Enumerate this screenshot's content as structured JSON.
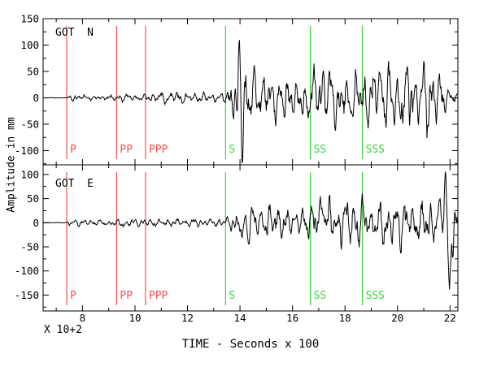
{
  "chart_data": {
    "type": "line",
    "title": "",
    "xlabel": "TIME - Seconds x 100",
    "ylabel": "Amplitude in mm",
    "x_unit_note": "X 10+2",
    "xlim": [
      6.5,
      22.3
    ],
    "x_major_ticks": [
      8,
      10,
      12,
      14,
      16,
      18,
      20,
      22
    ],
    "x_minor_tick_step": 1,
    "grid": false,
    "legend": "none",
    "colors": {
      "trace": "#000000",
      "axis": "#000000",
      "p_marker": "#f05050",
      "s_marker": "#3cd43c",
      "background": "#ffffff"
    },
    "panels": [
      {
        "component": "N",
        "station_label": "GOT  N",
        "ylim": [
          -127,
          150
        ],
        "y_major_ticks": [
          150,
          100,
          50,
          0,
          -50,
          -100
        ],
        "y_minor_ticks": [
          125,
          75,
          25,
          -25,
          -75,
          -125
        ],
        "phase_markers": [
          {
            "label": "P",
            "x": 7.4,
            "type": "p"
          },
          {
            "label": "PP",
            "x": 9.3,
            "type": "p"
          },
          {
            "label": "PPP",
            "x": 10.4,
            "type": "p"
          },
          {
            "label": "S",
            "x": 13.45,
            "type": "s"
          },
          {
            "label": "SS",
            "x": 16.68,
            "type": "s"
          },
          {
            "label": "SSS",
            "x": 18.66,
            "type": "s"
          }
        ],
        "envelope": [
          [
            6.5,
            0.4
          ],
          [
            7.38,
            0.4
          ],
          [
            7.5,
            8
          ],
          [
            8.3,
            7
          ],
          [
            9.25,
            8
          ],
          [
            9.5,
            9
          ],
          [
            10.3,
            8
          ],
          [
            10.6,
            9
          ],
          [
            11.2,
            12
          ],
          [
            12.3,
            11
          ],
          [
            13.3,
            10
          ],
          [
            13.5,
            25
          ],
          [
            13.75,
            55
          ],
          [
            14.25,
            70
          ],
          [
            14.6,
            62
          ],
          [
            15.2,
            58
          ],
          [
            15.8,
            48
          ],
          [
            16.3,
            38
          ],
          [
            16.7,
            55
          ],
          [
            17.1,
            68
          ],
          [
            17.6,
            64
          ],
          [
            18.1,
            58
          ],
          [
            18.65,
            62
          ],
          [
            19.2,
            70
          ],
          [
            19.9,
            72
          ],
          [
            20.5,
            82
          ],
          [
            21.0,
            88
          ],
          [
            21.4,
            75
          ],
          [
            21.75,
            45
          ],
          [
            22.0,
            20
          ],
          [
            22.3,
            12
          ]
        ],
        "spikes": [
          {
            "x": 13.88,
            "amp": -45,
            "w": 0.04
          },
          {
            "x": 13.97,
            "amp": 120,
            "w": 0.045
          },
          {
            "x": 14.09,
            "amp": -110,
            "w": 0.05
          }
        ],
        "osc_phases": [
          0.7,
          2.1,
          4.0
        ],
        "seed": 7
      },
      {
        "component": "E",
        "station_label": "GOT  E",
        "ylim": [
          -183,
          120
        ],
        "y_major_ticks": [
          100,
          50,
          0,
          -50,
          -100,
          -150
        ],
        "y_minor_ticks": [
          75,
          25,
          -25,
          -75,
          -125,
          -175
        ],
        "phase_markers": [
          {
            "label": "P",
            "x": 7.4,
            "type": "p"
          },
          {
            "label": "PP",
            "x": 9.3,
            "type": "p"
          },
          {
            "label": "PPP",
            "x": 10.4,
            "type": "p"
          },
          {
            "label": "S",
            "x": 13.45,
            "type": "s"
          },
          {
            "label": "SS",
            "x": 16.68,
            "type": "s"
          },
          {
            "label": "SSS",
            "x": 18.66,
            "type": "s"
          }
        ],
        "envelope": [
          [
            6.5,
            0.4
          ],
          [
            7.38,
            0.4
          ],
          [
            7.5,
            8
          ],
          [
            9.35,
            8
          ],
          [
            9.55,
            16
          ],
          [
            9.75,
            8
          ],
          [
            10.5,
            9
          ],
          [
            11.3,
            11
          ],
          [
            12.4,
            9
          ],
          [
            13.4,
            9
          ],
          [
            13.6,
            22
          ],
          [
            14.1,
            38
          ],
          [
            14.6,
            45
          ],
          [
            15.1,
            42
          ],
          [
            15.7,
            40
          ],
          [
            16.2,
            32
          ],
          [
            16.7,
            48
          ],
          [
            17.15,
            66
          ],
          [
            17.6,
            55
          ],
          [
            18.2,
            58
          ],
          [
            18.7,
            55
          ],
          [
            19.3,
            52
          ],
          [
            19.9,
            58
          ],
          [
            20.6,
            52
          ],
          [
            21.1,
            58
          ],
          [
            21.5,
            50
          ],
          [
            21.9,
            45
          ],
          [
            22.15,
            42
          ],
          [
            22.3,
            30
          ]
        ],
        "spikes": [
          {
            "x": 14.07,
            "amp": -45,
            "w": 0.04
          },
          {
            "x": 17.15,
            "amp": 45,
            "w": 0.05
          },
          {
            "x": 21.82,
            "amp": 95,
            "w": 0.045
          },
          {
            "x": 21.97,
            "amp": -140,
            "w": 0.055
          },
          {
            "x": 22.12,
            "amp": -80,
            "w": 0.04
          }
        ],
        "osc_phases": [
          1.9,
          0.3,
          2.6
        ],
        "seed": 23
      }
    ]
  }
}
